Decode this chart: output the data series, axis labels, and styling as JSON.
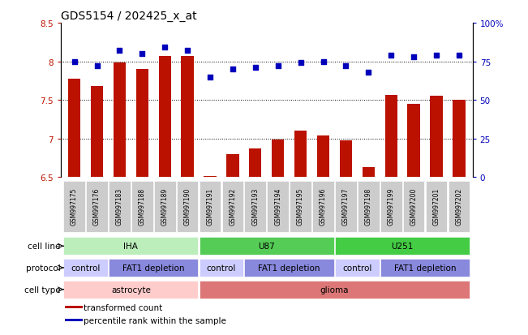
{
  "title": "GDS5154 / 202425_x_at",
  "samples": [
    "GSM997175",
    "GSM997176",
    "GSM997183",
    "GSM997188",
    "GSM997189",
    "GSM997190",
    "GSM997191",
    "GSM997192",
    "GSM997193",
    "GSM997194",
    "GSM997195",
    "GSM997196",
    "GSM997197",
    "GSM997198",
    "GSM997199",
    "GSM997200",
    "GSM997201",
    "GSM997202"
  ],
  "transformed_count": [
    7.78,
    7.68,
    7.98,
    7.9,
    8.07,
    8.07,
    6.52,
    6.8,
    6.87,
    6.99,
    7.1,
    7.04,
    6.98,
    6.63,
    7.57,
    7.45,
    7.55,
    7.5
  ],
  "percentile_rank": [
    75,
    72,
    82,
    80,
    84,
    82,
    65,
    70,
    71,
    72,
    74,
    75,
    72,
    68,
    79,
    78,
    79,
    79
  ],
  "ylim_left": [
    6.5,
    8.5
  ],
  "ylim_right": [
    0,
    100
  ],
  "yticks_left": [
    6.5,
    7.0,
    7.5,
    8.0,
    8.5
  ],
  "ytick_labels_left": [
    "6.5",
    "7",
    "7.5",
    "8",
    "8.5"
  ],
  "yticks_right": [
    0,
    25,
    50,
    75,
    100
  ],
  "ytick_labels_right": [
    "0",
    "25",
    "50",
    "75",
    "100%"
  ],
  "bar_color": "#bb1100",
  "dot_color": "#0000bb",
  "cell_line_row": {
    "label": "cell line",
    "groups": [
      {
        "text": "IHA",
        "start": 0,
        "end": 5,
        "color": "#bbeebb"
      },
      {
        "text": "U87",
        "start": 6,
        "end": 11,
        "color": "#55cc55"
      },
      {
        "text": "U251",
        "start": 12,
        "end": 17,
        "color": "#44cc44"
      }
    ]
  },
  "protocol_row": {
    "label": "protocol",
    "groups": [
      {
        "text": "control",
        "start": 0,
        "end": 1,
        "color": "#ccccff"
      },
      {
        "text": "FAT1 depletion",
        "start": 2,
        "end": 5,
        "color": "#8888dd"
      },
      {
        "text": "control",
        "start": 6,
        "end": 7,
        "color": "#ccccff"
      },
      {
        "text": "FAT1 depletion",
        "start": 8,
        "end": 11,
        "color": "#8888dd"
      },
      {
        "text": "control",
        "start": 12,
        "end": 13,
        "color": "#ccccff"
      },
      {
        "text": "FAT1 depletion",
        "start": 14,
        "end": 17,
        "color": "#8888dd"
      }
    ]
  },
  "cell_type_row": {
    "label": "cell type",
    "groups": [
      {
        "text": "astrocyte",
        "start": 0,
        "end": 5,
        "color": "#ffcccc"
      },
      {
        "text": "glioma",
        "start": 6,
        "end": 17,
        "color": "#dd7777"
      }
    ]
  },
  "legend": [
    {
      "label": "transformed count",
      "color": "#bb1100"
    },
    {
      "label": "percentile rank within the sample",
      "color": "#0000bb"
    }
  ],
  "tick_bg_color": "#cccccc",
  "background_color": "#ffffff"
}
